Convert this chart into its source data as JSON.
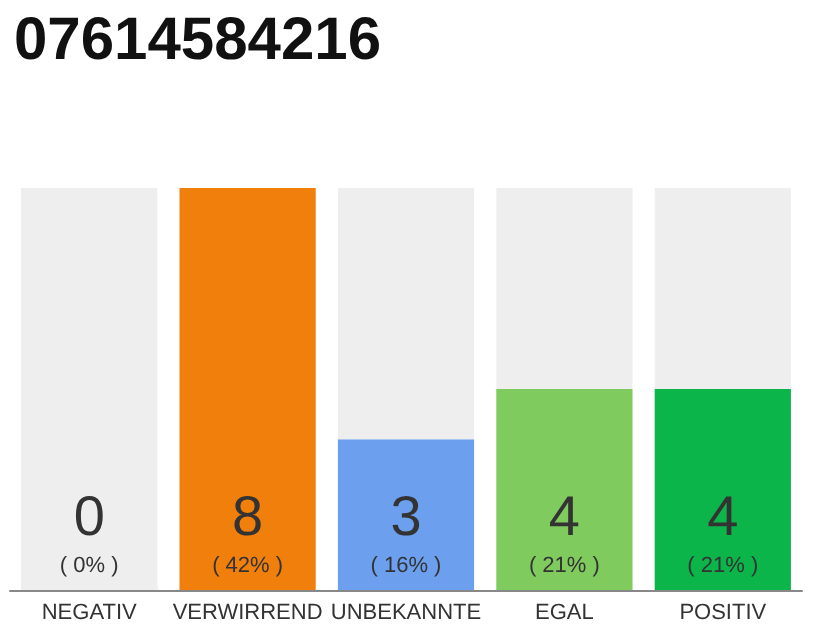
{
  "chart_data": {
    "type": "bar",
    "title": "07614584216",
    "stacked": true,
    "categories": [
      "NEGATIV",
      "VERWIRREND",
      "UNBEKANNTE",
      "EGAL",
      "POSITIV"
    ],
    "series": [
      {
        "colors": [
          "#cccccc",
          "#f07f0b",
          "#6ca0ef",
          "#7fcb5e",
          "#0cb54a"
        ],
        "values": [
          0,
          8,
          3,
          4,
          4
        ],
        "value_labels": [
          "0\n( 0% )",
          "8\n( 42% )",
          "3\n( 16% )",
          "4\n( 21% )",
          "4\n( 21% )"
        ]
      },
      {
        "color": "#eeeeee",
        "values": [
          8,
          0,
          5,
          4,
          4
        ]
      }
    ]
  }
}
